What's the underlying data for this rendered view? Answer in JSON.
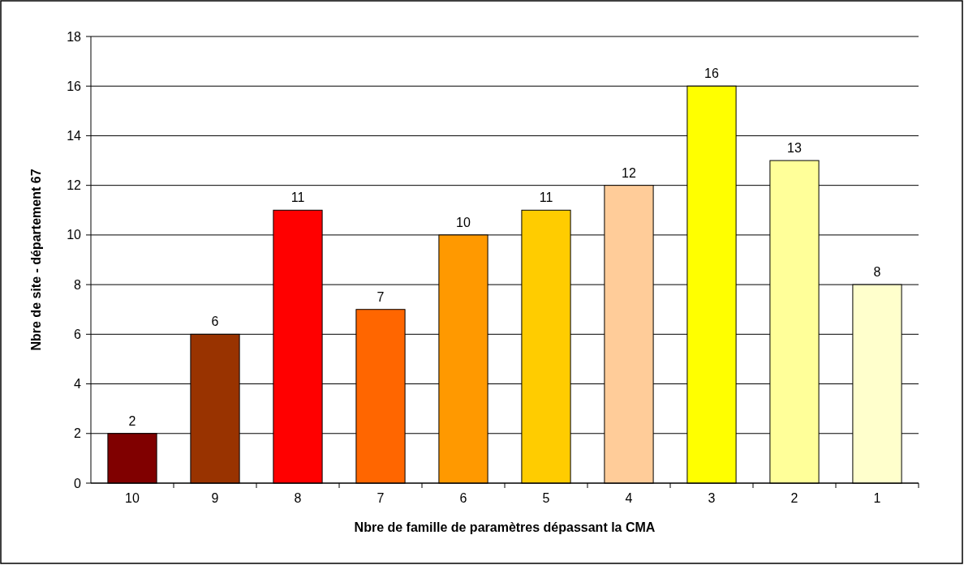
{
  "chart_data": {
    "type": "bar",
    "xlabel": "Nbre de famille de paramètres dépassant la CMA",
    "ylabel": "Nbre de site - département 67",
    "categories": [
      "10",
      "9",
      "8",
      "7",
      "6",
      "5",
      "4",
      "3",
      "2",
      "1"
    ],
    "values": [
      2,
      6,
      11,
      7,
      10,
      11,
      12,
      16,
      13,
      8
    ],
    "colors": [
      "#800000",
      "#993300",
      "#ff0000",
      "#ff6600",
      "#ff9900",
      "#ffcc00",
      "#ffcc99",
      "#ffff00",
      "#ffff99",
      "#ffffcc"
    ],
    "ylim": [
      0,
      18
    ],
    "yticks": [
      0,
      2,
      4,
      6,
      8,
      10,
      12,
      14,
      16,
      18
    ],
    "grid": "y",
    "data_labels": true
  }
}
